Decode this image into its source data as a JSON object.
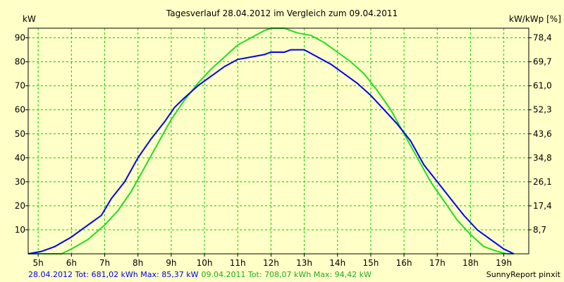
{
  "chart_data": {
    "type": "line",
    "title": "Tagesverlauf 28.04.2012 im Vergleich zum 09.04.2011",
    "ylabel_left": "kW",
    "ylabel_right": "kW/kWp [%]",
    "xlim": [
      4.7,
      19.75
    ],
    "ylim": [
      0,
      94
    ],
    "x_tick_values": [
      5,
      6,
      7,
      8,
      9,
      10,
      11,
      12,
      13,
      14,
      15,
      16,
      17,
      18,
      19
    ],
    "x_tick_labels": [
      "5h",
      "6h",
      "7h",
      "8h",
      "9h",
      "10h",
      "11h",
      "12h",
      "13h",
      "14h",
      "15h",
      "16h",
      "17h",
      "18h",
      "19h"
    ],
    "y_ticks_left": [
      10,
      20,
      30,
      40,
      50,
      60,
      70,
      80,
      90
    ],
    "y_ticks_right": [
      "8,7",
      "17,4",
      "26,1",
      "34,8",
      "43,6",
      "52,3",
      "61,0",
      "69,7",
      "78,4"
    ],
    "grid": true,
    "background_color": "#ffffc8",
    "grid_color": "#00cc00",
    "series": [
      {
        "name": "28.04.2012",
        "color": "#0000ee",
        "x": [
          4.7,
          5.1,
          5.5,
          6.0,
          6.5,
          6.9,
          7.2,
          7.6,
          8.0,
          8.4,
          8.8,
          9.1,
          9.4,
          9.8,
          10.2,
          10.6,
          11.0,
          11.4,
          11.8,
          12.0,
          12.4,
          12.6,
          13.0,
          13.4,
          13.8,
          14.2,
          14.6,
          15.0,
          15.4,
          15.8,
          16.2,
          16.6,
          17.0,
          17.4,
          17.8,
          18.2,
          18.6,
          19.0,
          19.3
        ],
        "y": [
          0,
          1,
          3,
          7,
          12,
          16,
          23,
          30,
          40,
          48,
          55,
          61,
          65,
          70,
          74,
          78,
          81,
          82,
          83,
          84,
          84,
          85,
          85,
          82,
          79,
          75,
          71,
          66,
          60,
          54,
          47,
          37,
          30,
          23,
          16,
          10,
          6,
          2,
          0
        ]
      },
      {
        "name": "09.04.2011",
        "color": "#22dd22",
        "x": [
          4.7,
          5.7,
          6.0,
          6.5,
          7.0,
          7.4,
          7.8,
          8.2,
          8.6,
          9.0,
          9.4,
          9.8,
          10.2,
          10.6,
          11.0,
          11.4,
          11.8,
          12.0,
          12.4,
          12.8,
          13.2,
          13.6,
          14.0,
          14.4,
          14.8,
          15.2,
          15.6,
          16.0,
          16.4,
          16.8,
          17.2,
          17.6,
          18.0,
          18.4,
          18.8,
          19.1,
          19.3
        ],
        "y": [
          0,
          0,
          2,
          6,
          12,
          18,
          26,
          36,
          46,
          56,
          64,
          71,
          77,
          82,
          87,
          90,
          93,
          94,
          94,
          92,
          91,
          88,
          84,
          80,
          75,
          68,
          60,
          50,
          40,
          30,
          22,
          14,
          8,
          3,
          1,
          0,
          0
        ]
      }
    ],
    "footer": {
      "series1_summary": "28.04.2012 Tot: 681,02 kWh Max: 85,37 kW",
      "series2_summary": "09.04.2011 Tot: 708,07 kWh Max: 94,42 kW",
      "credit": "SunnyReport pinxit"
    }
  }
}
